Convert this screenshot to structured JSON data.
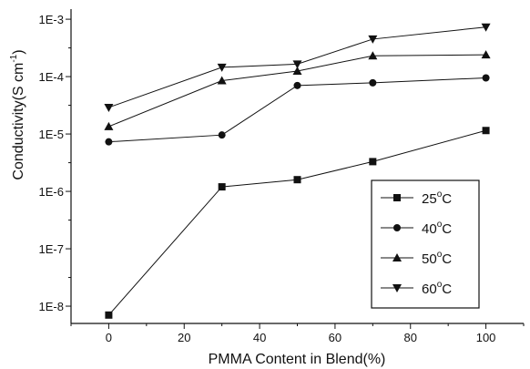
{
  "chart_data": {
    "type": "line",
    "xlabel": "PMMA Content in Blend(%)",
    "ylabel": "Conductivity(S cm",
    "ylabel_sup": "-1",
    "ylabel_close": ")",
    "xlim": [
      -10,
      110
    ],
    "ylim": [
      5e-09,
      0.0015
    ],
    "yscale": "log",
    "grid": false,
    "legend_position": "lower-right",
    "x_ticks": [
      0,
      20,
      40,
      60,
      80,
      100
    ],
    "x_tick_labels": [
      "0",
      "20",
      "40",
      "60",
      "80",
      "100"
    ],
    "y_ticks": [
      1e-08,
      1e-07,
      1e-06,
      1e-05,
      0.0001,
      0.001
    ],
    "y_tick_labels": [
      "1E-8",
      "1E-7",
      "1E-6",
      "1E-5",
      "1E-4",
      "1E-3"
    ],
    "x": [
      0,
      30,
      50,
      70,
      100
    ],
    "series": [
      {
        "name": "25",
        "unit": "C",
        "unit_sup": "o",
        "marker": "square",
        "values": [
          7e-09,
          1.2e-06,
          1.6e-06,
          3.3e-06,
          1.15e-05
        ]
      },
      {
        "name": "40",
        "unit": "C",
        "unit_sup": "o",
        "marker": "circle",
        "values": [
          7.3e-06,
          9.6e-06,
          7e-05,
          7.8e-05,
          9.5e-05
        ]
      },
      {
        "name": "50",
        "unit": "C",
        "unit_sup": "o",
        "marker": "triangle-up",
        "values": [
          1.35e-05,
          8.5e-05,
          0.000125,
          0.00023,
          0.00024
        ]
      },
      {
        "name": "60",
        "unit": "C",
        "unit_sup": "o",
        "marker": "triangle-down",
        "values": [
          2.9e-05,
          0.000145,
          0.000165,
          0.00045,
          0.00073
        ]
      }
    ],
    "color": "#111111"
  }
}
